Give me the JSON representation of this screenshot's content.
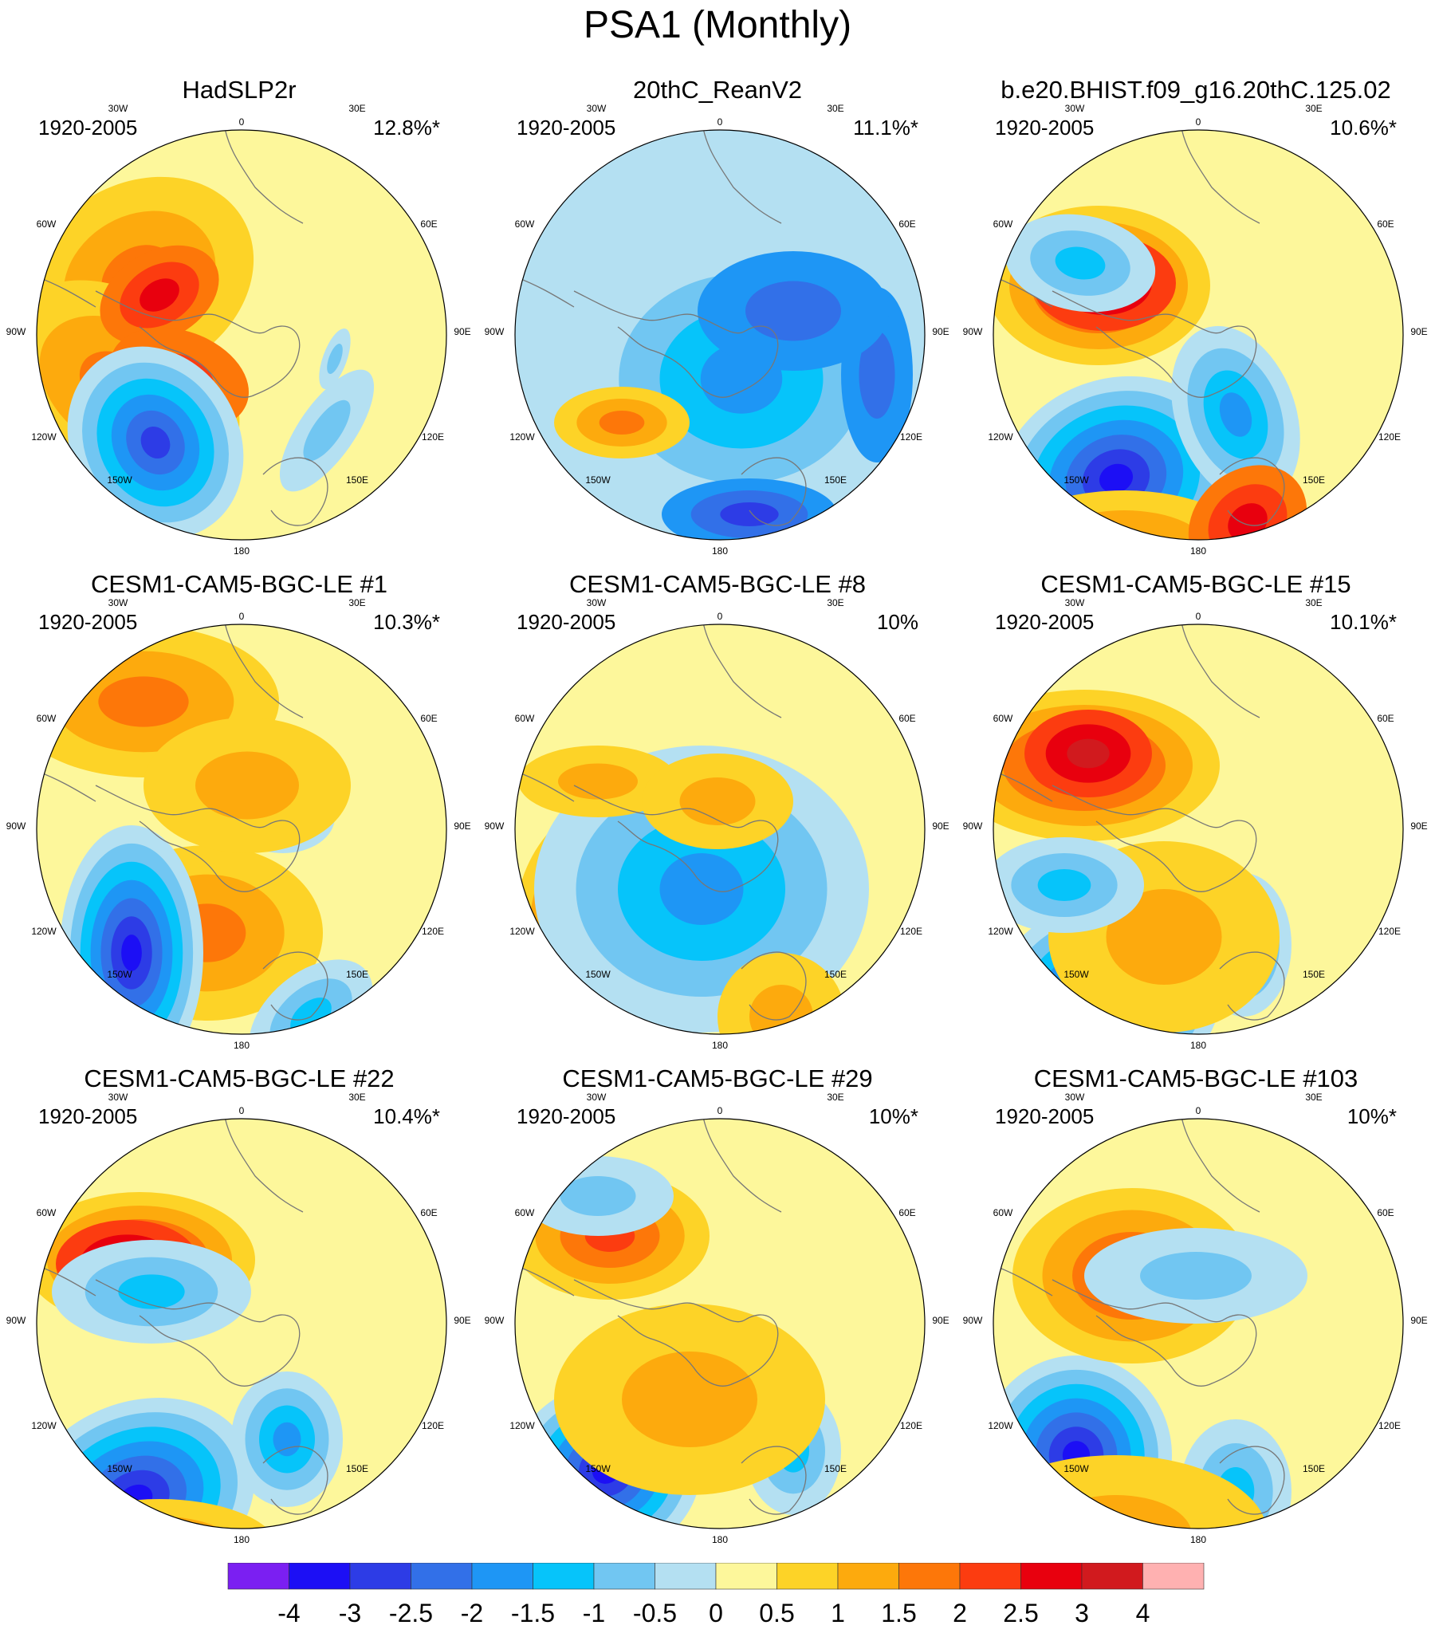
{
  "title": "PSA1 (Monthly)",
  "panels": [
    {
      "title": "HadSLP2r",
      "period": "1920-2005",
      "variance": "12.8%*"
    },
    {
      "title": "20thC_ReanV2",
      "period": "1920-2005",
      "variance": "11.1%*"
    },
    {
      "title": "b.e20.BHIST.f09_g16.20thC.125.02",
      "period": "1920-2005",
      "variance": "10.6%*"
    },
    {
      "title": "CESM1-CAM5-BGC-LE #1",
      "period": "1920-2005",
      "variance": "10.3%*"
    },
    {
      "title": "CESM1-CAM5-BGC-LE #8",
      "period": "1920-2005",
      "variance": "10%"
    },
    {
      "title": "CESM1-CAM5-BGC-LE #15",
      "period": "1920-2005",
      "variance": "10.1%*"
    },
    {
      "title": "CESM1-CAM5-BGC-LE #22",
      "period": "1920-2005",
      "variance": "10.4%*"
    },
    {
      "title": "CESM1-CAM5-BGC-LE #29",
      "period": "1920-2005",
      "variance": "10%*"
    },
    {
      "title": "CESM1-CAM5-BGC-LE #103",
      "period": "1920-2005",
      "variance": "10%*"
    }
  ],
  "map_labels": {
    "top": "0",
    "bottom": "180",
    "left": [
      "30W",
      "60W",
      "90W",
      "120W",
      "150W"
    ],
    "right": [
      "30E",
      "60E",
      "90E",
      "120E",
      "150E"
    ]
  },
  "colorbar": {
    "colors": [
      "#7b1ff2",
      "#1c0ff5",
      "#2d3ce6",
      "#3270e8",
      "#1e96f5",
      "#06c4fa",
      "#71c6f2",
      "#b4e0f2",
      "#fdf79b",
      "#fdd327",
      "#fdaa0d",
      "#fd7709",
      "#fc3c10",
      "#e8000e",
      "#d11a1e",
      "#ffb1b1"
    ],
    "labels": [
      "-4",
      "-3",
      "-2.5",
      "-2",
      "-1.5",
      "-1",
      "-0.5",
      "0",
      "0.5",
      "1",
      "1.5",
      "2",
      "2.5",
      "3",
      "4"
    ]
  }
}
